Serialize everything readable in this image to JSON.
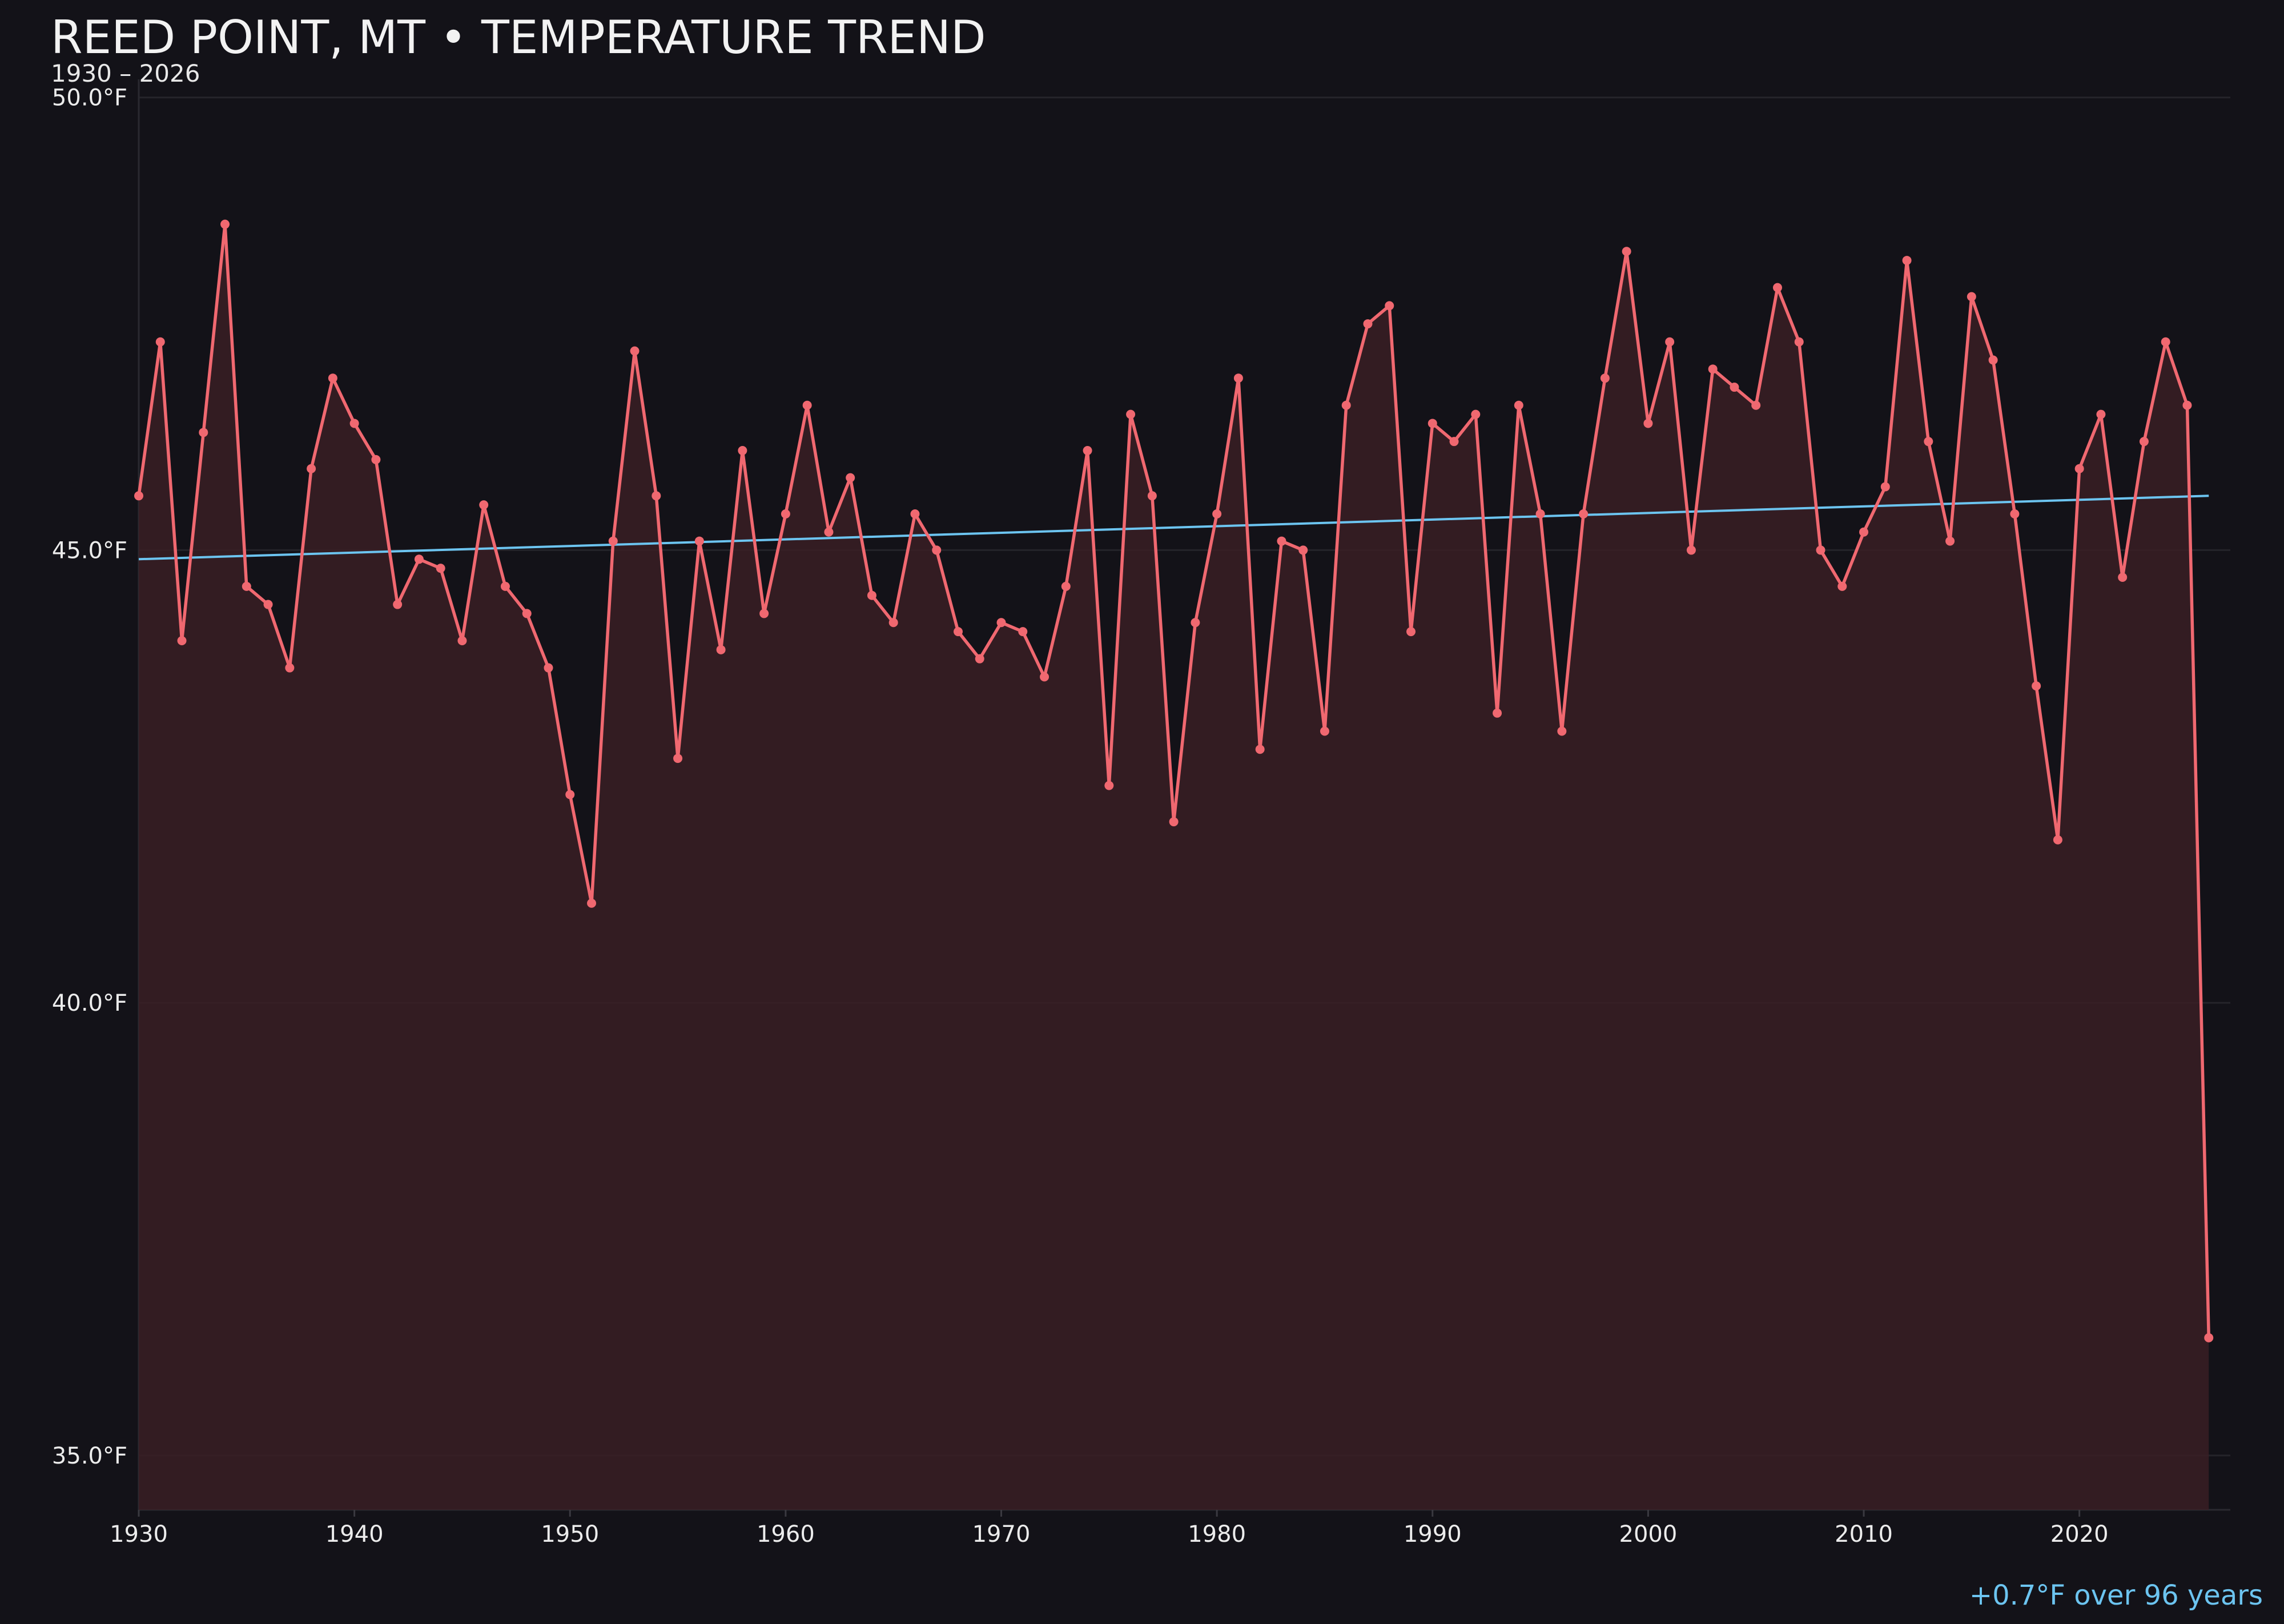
{
  "colors": {
    "background": "#131218",
    "series_line": "#f06870",
    "area_fill": "#3a1e24",
    "trend_line": "#6cc4f0",
    "grid": "#25242a",
    "text": "#ececec"
  },
  "chart_data": {
    "type": "line",
    "title": "REED POINT, MT • TEMPERATURE TREND",
    "subtitle": "1930 – 2026",
    "xlabel": "",
    "ylabel": "",
    "xlim": [
      1930,
      2027
    ],
    "ylim": [
      34.4,
      50.2
    ],
    "y_ticks": [
      35,
      40,
      45,
      50
    ],
    "y_tick_labels": [
      "35.0°F",
      "40.0°F",
      "45.0°F",
      "50.0°F"
    ],
    "x_ticks": [
      1930,
      1940,
      1950,
      1960,
      1970,
      1980,
      1990,
      2000,
      2010,
      2020
    ],
    "x_tick_labels": [
      "1930",
      "1940",
      "1950",
      "1960",
      "1970",
      "1980",
      "1990",
      "2000",
      "2010",
      "2020"
    ],
    "grid": true,
    "area_fill": true,
    "series": [
      {
        "x": [
          1930,
          1931,
          1932,
          1933,
          1934,
          1935,
          1936,
          1937,
          1938,
          1939,
          1940,
          1941,
          1942,
          1943,
          1944,
          1945,
          1946,
          1947,
          1948,
          1949,
          1950,
          1951,
          1952,
          1953,
          1954,
          1955,
          1956,
          1957,
          1958,
          1959,
          1960,
          1961,
          1962,
          1963,
          1964,
          1965,
          1966,
          1967,
          1968,
          1969,
          1970,
          1971,
          1972,
          1973,
          1974,
          1975,
          1976,
          1977,
          1978,
          1979,
          1980,
          1981,
          1982,
          1983,
          1984,
          1985,
          1986,
          1987,
          1988,
          1989,
          1990,
          1991,
          1992,
          1993,
          1994,
          1995,
          1996,
          1997,
          1998,
          1999,
          2000,
          2001,
          2002,
          2003,
          2004,
          2005,
          2006,
          2007,
          2008,
          2009,
          2010,
          2011,
          2012,
          2013,
          2014,
          2015,
          2016,
          2017,
          2018,
          2019,
          2020,
          2021,
          2022,
          2023,
          2024,
          2025,
          2026
        ],
        "values": [
          45.6,
          47.3,
          44.0,
          46.3,
          48.6,
          44.6,
          44.4,
          43.7,
          45.9,
          46.9,
          46.4,
          46.0,
          44.4,
          44.9,
          44.8,
          44.0,
          45.5,
          44.6,
          44.3,
          43.7,
          42.3,
          41.1,
          45.1,
          47.2,
          45.6,
          42.7,
          45.1,
          43.9,
          46.1,
          44.3,
          45.4,
          46.6,
          45.2,
          45.8,
          44.5,
          44.2,
          45.4,
          45.0,
          44.1,
          43.8,
          44.2,
          44.1,
          43.6,
          44.6,
          46.1,
          42.4,
          46.5,
          45.6,
          42.0,
          44.2,
          45.4,
          46.9,
          42.8,
          45.1,
          45.0,
          43.0,
          46.6,
          47.5,
          47.7,
          44.1,
          46.4,
          46.2,
          46.5,
          43.2,
          46.6,
          45.4,
          43.0,
          45.4,
          46.9,
          48.3,
          46.4,
          47.3,
          45.0,
          47.0,
          46.8,
          46.6,
          47.9,
          47.3,
          45.0,
          44.6,
          45.2,
          45.7,
          48.2,
          46.2,
          45.1,
          47.8,
          47.1,
          45.4,
          43.5,
          41.8,
          45.9,
          46.5,
          44.7,
          46.2,
          47.3,
          46.6,
          36.3
        ]
      }
    ],
    "trend": {
      "x": [
        1930,
        2026
      ],
      "values": [
        44.9,
        45.6
      ],
      "label": "+0.7°F over 96 years"
    }
  }
}
